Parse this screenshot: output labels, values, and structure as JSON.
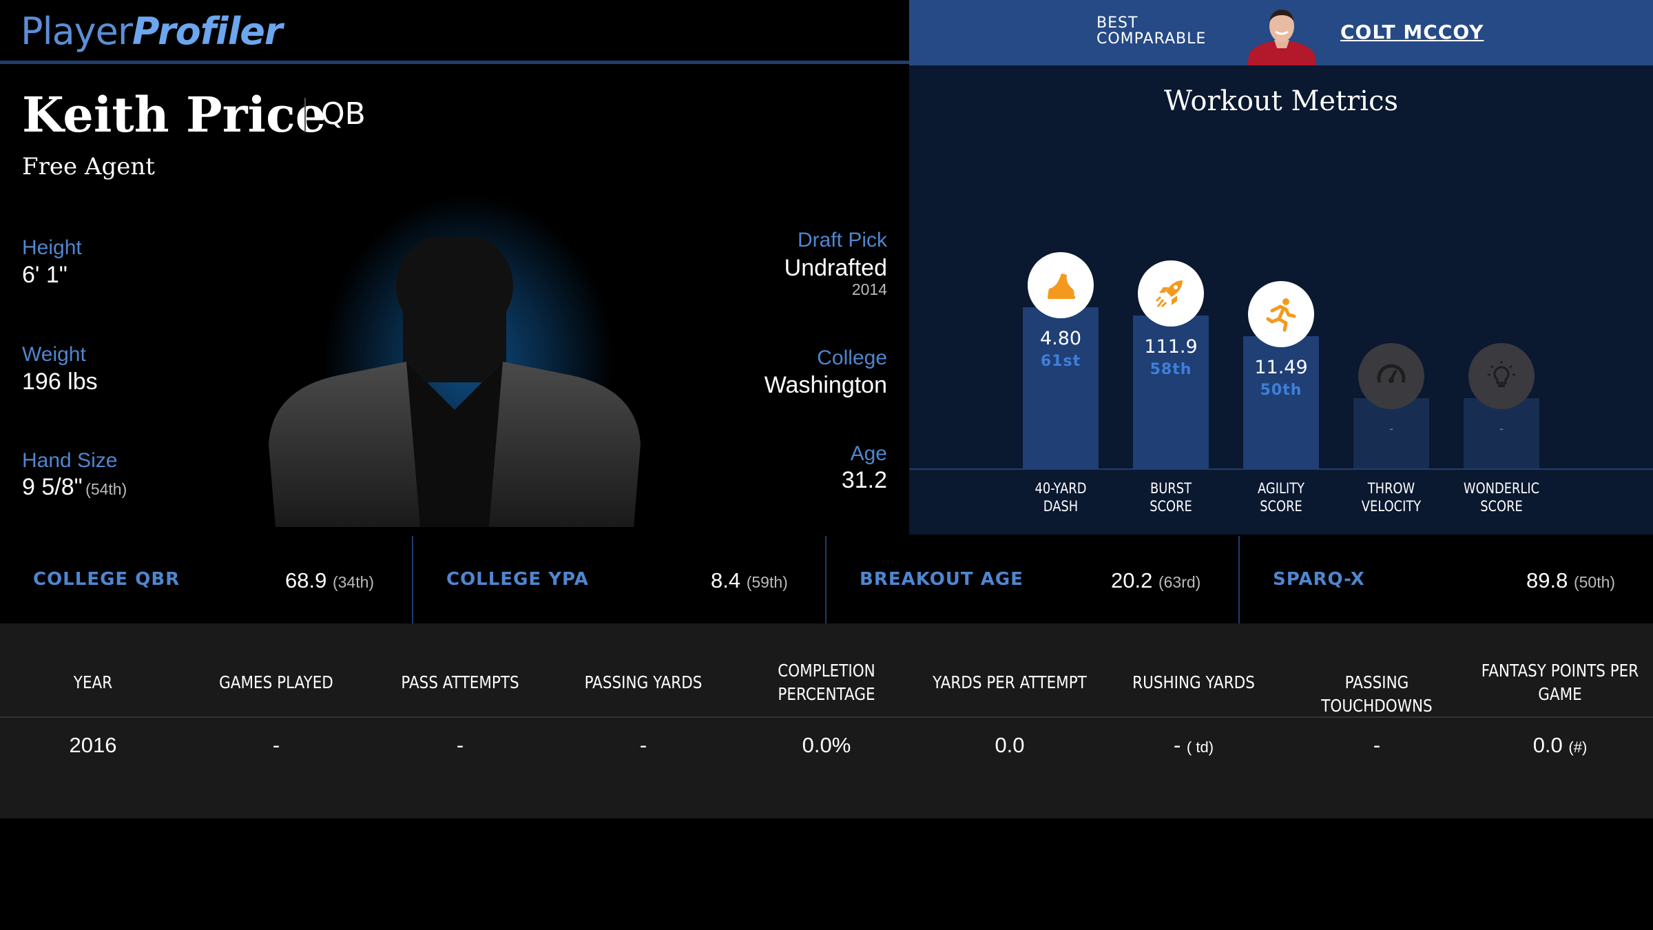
{
  "logo": {
    "part1": "Player",
    "part2": "Profiler"
  },
  "comparable": {
    "label": "BEST COMPARABLE",
    "name": "COLT MCCOY"
  },
  "player": {
    "name": "Keith Price",
    "position": "QB",
    "team": "Free Agent",
    "height": {
      "label": "Height",
      "value": "6' 1\""
    },
    "weight": {
      "label": "Weight",
      "value": "196 lbs"
    },
    "hand_size": {
      "label": "Hand Size",
      "value": "9 5/8\"",
      "pct": "(54th)"
    },
    "draft_pick": {
      "label": "Draft Pick",
      "value": "Undrafted",
      "year": "2014"
    },
    "college": {
      "label": "College",
      "value": "Washington"
    },
    "age": {
      "label": "Age",
      "value": "31.2"
    }
  },
  "workout": {
    "title": "Workout Metrics",
    "metrics": [
      {
        "label_line1": "40-YARD",
        "label_line2": "DASH",
        "value": "4.80",
        "pct": "61st",
        "icon": "running-shoe-icon"
      },
      {
        "label_line1": "BURST",
        "label_line2": "SCORE",
        "value": "111.9",
        "pct": "58th",
        "icon": "rocket-icon"
      },
      {
        "label_line1": "AGILITY",
        "label_line2": "SCORE",
        "value": "11.49",
        "pct": "50th",
        "icon": "runner-icon"
      },
      {
        "label_line1": "THROW",
        "label_line2": "VELOCITY",
        "value": "-",
        "pct": "",
        "icon": "speedometer-icon"
      },
      {
        "label_line1": "WONDERLIC",
        "label_line2": "SCORE",
        "value": "-",
        "pct": "",
        "icon": "lightbulb-icon"
      }
    ],
    "colors": {
      "bar": "#1f3f75",
      "icon_active": "#f39a1e",
      "percentile": "#3f7fd8"
    }
  },
  "stats": [
    {
      "label": "COLLEGE QBR",
      "value": "68.9",
      "pct": "(34th)"
    },
    {
      "label": "COLLEGE YPA",
      "value": "8.4",
      "pct": "(59th)"
    },
    {
      "label": "BREAKOUT AGE",
      "value": "20.2",
      "pct": "(63rd)"
    },
    {
      "label": "SPARQ-X",
      "value": "89.8",
      "pct": "(50th)"
    }
  ],
  "table": {
    "headers": [
      {
        "line1": "YEAR",
        "line2": ""
      },
      {
        "line1": "GAMES PLAYED",
        "line2": ""
      },
      {
        "line1": "PASS ATTEMPTS",
        "line2": ""
      },
      {
        "line1": "PASSING YARDS",
        "line2": ""
      },
      {
        "line1": "COMPLETION",
        "line2": "PERCENTAGE"
      },
      {
        "line1": "YARDS PER ATTEMPT",
        "line2": ""
      },
      {
        "line1": "RUSHING YARDS",
        "line2": ""
      },
      {
        "line1": "PASSING TOUCHDOWNS",
        "line2": ""
      },
      {
        "line1": "FANTASY POINTS PER",
        "line2": "GAME"
      }
    ],
    "row": {
      "year": "2016",
      "games_played": "-",
      "pass_attempts": "-",
      "passing_yards": "-",
      "completion_pct": "0.0%",
      "yards_per_attempt": "0.0",
      "rushing_yards": "-",
      "rushing_td": "( td)",
      "passing_td": "-",
      "fantasy_ppg": "0.0",
      "fantasy_rank": "(#)"
    }
  }
}
